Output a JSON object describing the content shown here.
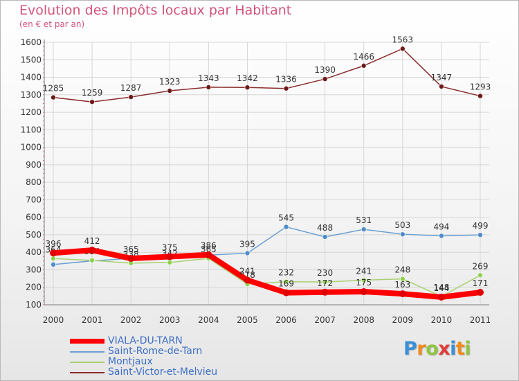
{
  "title": "Evolution des Impôts locaux par Habitant",
  "subtitle": "(en € et par an)",
  "logo": {
    "text": "Proxiti",
    "colors": [
      "#3a8fd6",
      "#f08a1c",
      "#8fc63f",
      "#e23b3b",
      "#3a8fd6",
      "#f08a1c",
      "#8fc63f"
    ]
  },
  "chart_data": {
    "type": "line",
    "x": [
      "2000",
      "2001",
      "2002",
      "2003",
      "2004",
      "2005",
      "2006",
      "2007",
      "2008",
      "2009",
      "2010",
      "2011"
    ],
    "yticks": [
      "100",
      "200",
      "300",
      "400",
      "500",
      "600",
      "700",
      "800",
      "900",
      "1000",
      "1100",
      "1200",
      "1300",
      "1400",
      "1500",
      "1600"
    ],
    "ylim": [
      100,
      1600
    ],
    "grid": true,
    "legend_placement": "bottom-left",
    "series": [
      {
        "name": "Saint-Victor-et-Melvieu",
        "color": "#8b2c2c",
        "marker": "#6e1a1a",
        "values": [
          1285,
          1259,
          1287,
          1323,
          1343,
          1342,
          1336,
          1390,
          1466,
          1563,
          1347,
          1293
        ],
        "labels": [
          "1285",
          "1259",
          "1287",
          "1323",
          "1343",
          "1342",
          "1336",
          "1390",
          "1466",
          "1563",
          "1347",
          "1293"
        ]
      },
      {
        "name": "Saint-Rome-de-Tarn",
        "color": "#6aa0d2",
        "marker": "#4f8cc9",
        "values": [
          330,
          351,
          365,
          375,
          384,
          395,
          545,
          488,
          531,
          503,
          494,
          499
        ],
        "labels": [
          "",
          "",
          "",
          "",
          "",
          "395",
          "545",
          "488",
          "531",
          "503",
          "494",
          "499"
        ]
      },
      {
        "name": "Montjaux",
        "color": "#a8d070",
        "marker": "#8fd14f",
        "values": [
          364,
          354,
          338,
          342,
          365,
          218,
          232,
          230,
          241,
          248,
          148,
          269
        ],
        "labels": [
          "364",
          "354",
          "338",
          "342",
          "365",
          "218",
          "232",
          "230",
          "241",
          "248",
          "148",
          "269"
        ]
      },
      {
        "name": "VIALA-DU-TARN",
        "color": "#ff0000",
        "marker": "#e00000",
        "values": [
          396,
          412,
          365,
          375,
          386,
          241,
          169,
          172,
          175,
          163,
          144,
          171
        ],
        "labels": [
          "396",
          "412",
          "365",
          "375",
          "386",
          "241",
          "169",
          "172",
          "175",
          "163",
          "144",
          "171"
        ]
      }
    ]
  },
  "legend": {
    "items": [
      {
        "name": "VIALA-DU-TARN",
        "color": "#ff0000"
      },
      {
        "name": "Saint-Rome-de-Tarn",
        "color": "#6aa0d2"
      },
      {
        "name": "Montjaux",
        "color": "#a8d070"
      },
      {
        "name": "Saint-Victor-et-Melvieu",
        "color": "#8b2c2c"
      }
    ]
  }
}
